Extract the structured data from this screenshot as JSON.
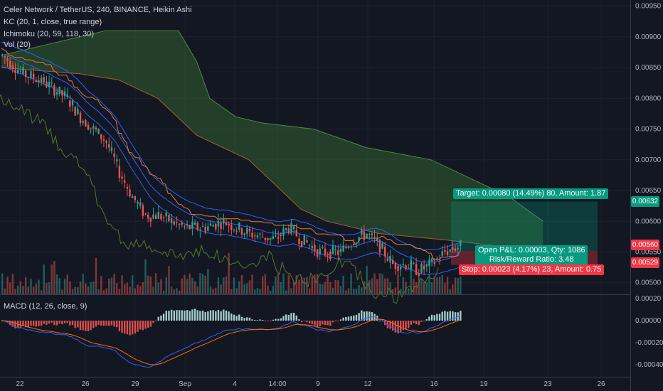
{
  "legend": {
    "title": "Celer Network / TetherUS, 240, BINANCE, Heikin Ashi",
    "indicators": [
      "KC (20, 1, close, true range)",
      "Ichimoku (20, 59, 118, 30)",
      "Vol (20)"
    ],
    "macd": "MACD (12, 26, close, 9)"
  },
  "price_axis": {
    "min": 0.0048,
    "max": 0.0096,
    "labels": [
      "0.00950",
      "0.00900",
      "0.00850",
      "0.00800",
      "0.00750",
      "0.00700",
      "0.00650",
      "0.00600",
      "0.00550",
      "0.00500"
    ],
    "values": [
      0.0095,
      0.009,
      0.0085,
      0.008,
      0.0075,
      0.007,
      0.0065,
      0.006,
      0.0055,
      0.005
    ]
  },
  "macd_axis": {
    "labels": [
      "0.00020",
      "0.00000",
      "-0.00020",
      "-0.00040"
    ],
    "values": [
      0.0002,
      0.0,
      -0.0002,
      -0.0004
    ]
  },
  "time_axis": {
    "labels": [
      "22",
      "26",
      "29",
      "Sep",
      "4",
      "14:00",
      "9",
      "12",
      "16",
      "19",
      "23",
      "26"
    ]
  },
  "position": {
    "target_text": "Target: 0.00080 (14.49%) 80, Amount: 1.87",
    "pnl_text": "Open P&L: 0.00003, Qty: 1086",
    "rr_text": "Risk/Reward Ratio: 3.48",
    "stop_text": "Stop: 0.00023 (4.17%) 23, Amount: 0.75",
    "target_price": 0.00632,
    "entry_price": 0.00552,
    "stop_price": 0.00529
  },
  "price_tags": [
    {
      "label": "0.00632",
      "price": 0.00632,
      "color": "#089981"
    },
    {
      "label": "0.00560",
      "price": 0.0056,
      "color": "#f23645"
    },
    {
      "label": "0.00529",
      "price": 0.00529,
      "color": "#f23645"
    }
  ],
  "colors": {
    "up": "#26a69a",
    "down": "#ef5350",
    "cloud": "#2e5a2e",
    "kc": "#2962ff",
    "tenkan": "#e0793a",
    "chikou": "#4e7a30"
  },
  "chart_data": {
    "type": "candlestick",
    "control_points": [
      [
        0,
        0.0087
      ],
      [
        8,
        0.0084
      ],
      [
        15,
        0.0083
      ],
      [
        25,
        0.008
      ],
      [
        30,
        0.0077
      ],
      [
        35,
        0.0075
      ],
      [
        40,
        0.0073
      ],
      [
        45,
        0.0068
      ],
      [
        50,
        0.0064
      ],
      [
        55,
        0.0061
      ],
      [
        60,
        0.0061
      ],
      [
        70,
        0.0059
      ],
      [
        78,
        0.0059
      ],
      [
        85,
        0.006
      ],
      [
        95,
        0.0058
      ],
      [
        105,
        0.0057
      ],
      [
        110,
        0.0059
      ],
      [
        115,
        0.0057
      ],
      [
        122,
        0.0055
      ],
      [
        130,
        0.0055
      ],
      [
        135,
        0.0057
      ],
      [
        140,
        0.0058
      ],
      [
        145,
        0.0056
      ],
      [
        150,
        0.0053
      ],
      [
        155,
        0.0053
      ],
      [
        160,
        0.0052
      ],
      [
        165,
        0.0053
      ],
      [
        170,
        0.0055
      ],
      [
        176,
        0.0056
      ]
    ],
    "candle_count": 177
  }
}
